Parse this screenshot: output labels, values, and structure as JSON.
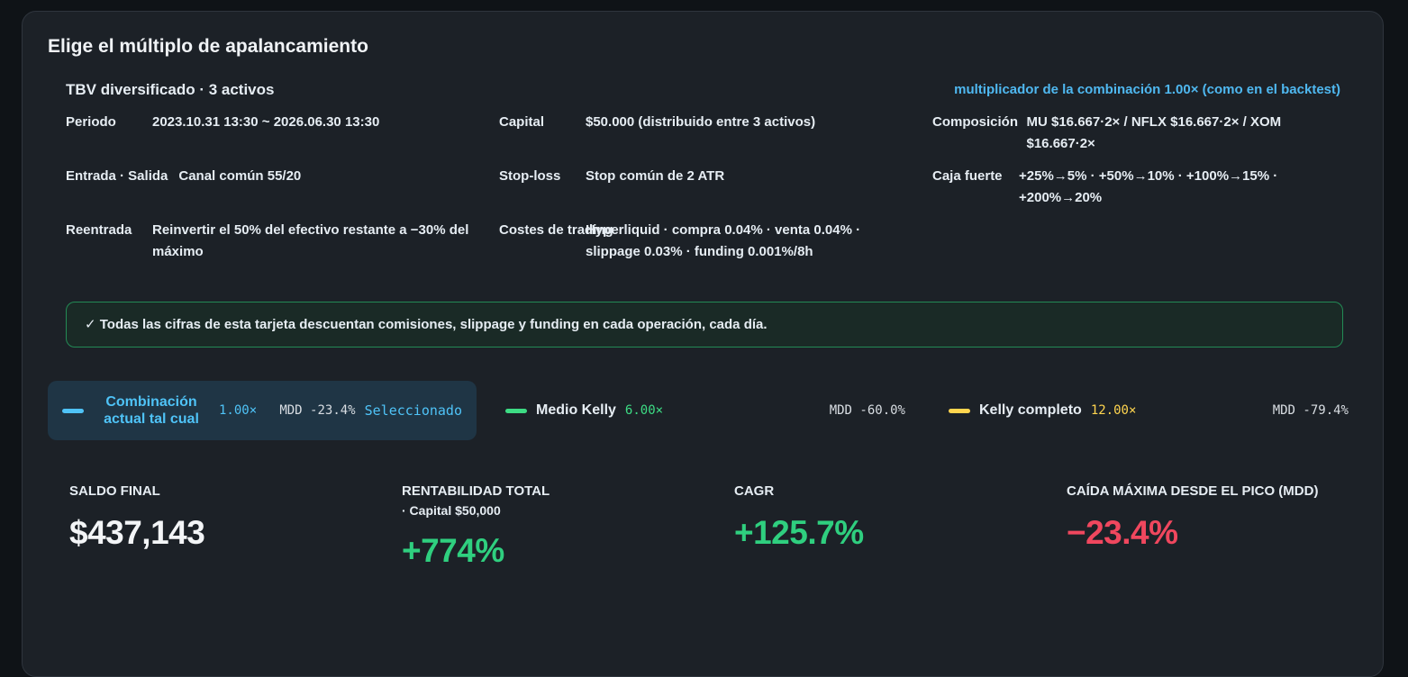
{
  "card": {
    "title": "Elige el múltiplo de apalancamiento"
  },
  "strategy": {
    "name": "TBV diversificado · 3 activos",
    "multiplier_note": "multiplicador de la combinación 1.00× (como en el backtest)"
  },
  "details": [
    {
      "label": "Periodo",
      "value": "2023.10.31 13:30 ~ 2026.06.30 13:30"
    },
    {
      "label": "Capital",
      "value": "$50.000 (distribuido entre 3 activos)"
    },
    {
      "label": "Composición",
      "value": "MU $16.667·2× / NFLX $16.667·2× / XOM $16.667·2×"
    },
    {
      "label": "Entrada · Salida",
      "value": "Canal común 55/20"
    },
    {
      "label": "Stop-loss",
      "value": "Stop común de 2 ATR"
    },
    {
      "label": "Caja fuerte",
      "value": "+25%→5% · +50%→10% · +100%→15% · +200%→20%"
    },
    {
      "label": "Reentrada",
      "value": "Reinvertir el 50% del efectivo restante a −30% del máximo"
    },
    {
      "label": "Costes de trading",
      "value": "Hyperliquid · compra 0.04% · venta 0.04% · slippage 0.03% · funding 0.001%/8h"
    }
  ],
  "notice": "✓ Todas las cifras de esta tarjeta descuentan comisiones, slippage y funding en cada operación, cada día.",
  "options": [
    {
      "name": "Combinación actual tal cual",
      "multiplier": "1.00×",
      "mdd": "MDD -23.4%",
      "status": "Seleccionado"
    },
    {
      "name": "Medio Kelly",
      "multiplier": "6.00×",
      "mdd": "MDD -60.0%"
    },
    {
      "name": "Kelly completo",
      "multiplier": "12.00×",
      "mdd": "MDD -79.4%"
    }
  ],
  "stats": [
    {
      "label": "SALDO FINAL",
      "value": "$437,143"
    },
    {
      "label": "RENTABILIDAD TOTAL",
      "sublabel": "· Capital $50,000",
      "value": "+774%"
    },
    {
      "label": "CAGR",
      "value": "+125.7%"
    },
    {
      "label": "CAÍDA MÁXIMA DESDE EL PICO (MDD)",
      "value": "−23.4%"
    }
  ]
}
